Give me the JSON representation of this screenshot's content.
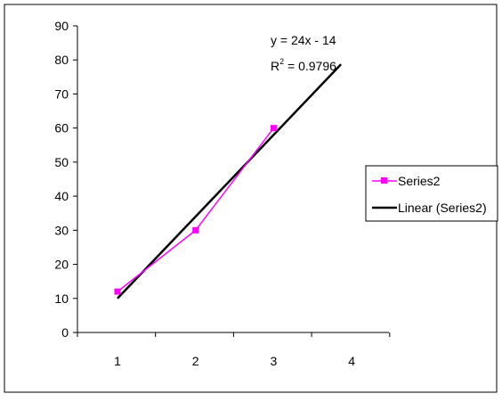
{
  "chart_data": {
    "type": "line",
    "title": "",
    "xlabel": "",
    "ylabel": "",
    "x_ticks": [
      "1",
      "2",
      "3",
      "4"
    ],
    "y_ticks": [
      "0",
      "10",
      "20",
      "30",
      "40",
      "50",
      "60",
      "70",
      "80",
      "90"
    ],
    "ylim": [
      0,
      90
    ],
    "grid": false,
    "legend_position": "right",
    "series": [
      {
        "name": "Series2",
        "x": [
          1,
          2,
          3
        ],
        "y": [
          12,
          30,
          60
        ],
        "color": "#ff00ff",
        "marker": "square"
      }
    ],
    "trendline": {
      "name": "Linear (Series2)",
      "type": "linear",
      "x_range": [
        1,
        4
      ],
      "slope": 24,
      "intercept": -14,
      "color": "#000000"
    },
    "annotations": {
      "equation": "y = 24x - 14",
      "r_squared_prefix": "R",
      "r_squared_sup": "2",
      "r_squared_value": " = 0.9796"
    },
    "legend": {
      "series_label": "Series2",
      "trend_label": "Linear (Series2)"
    }
  }
}
